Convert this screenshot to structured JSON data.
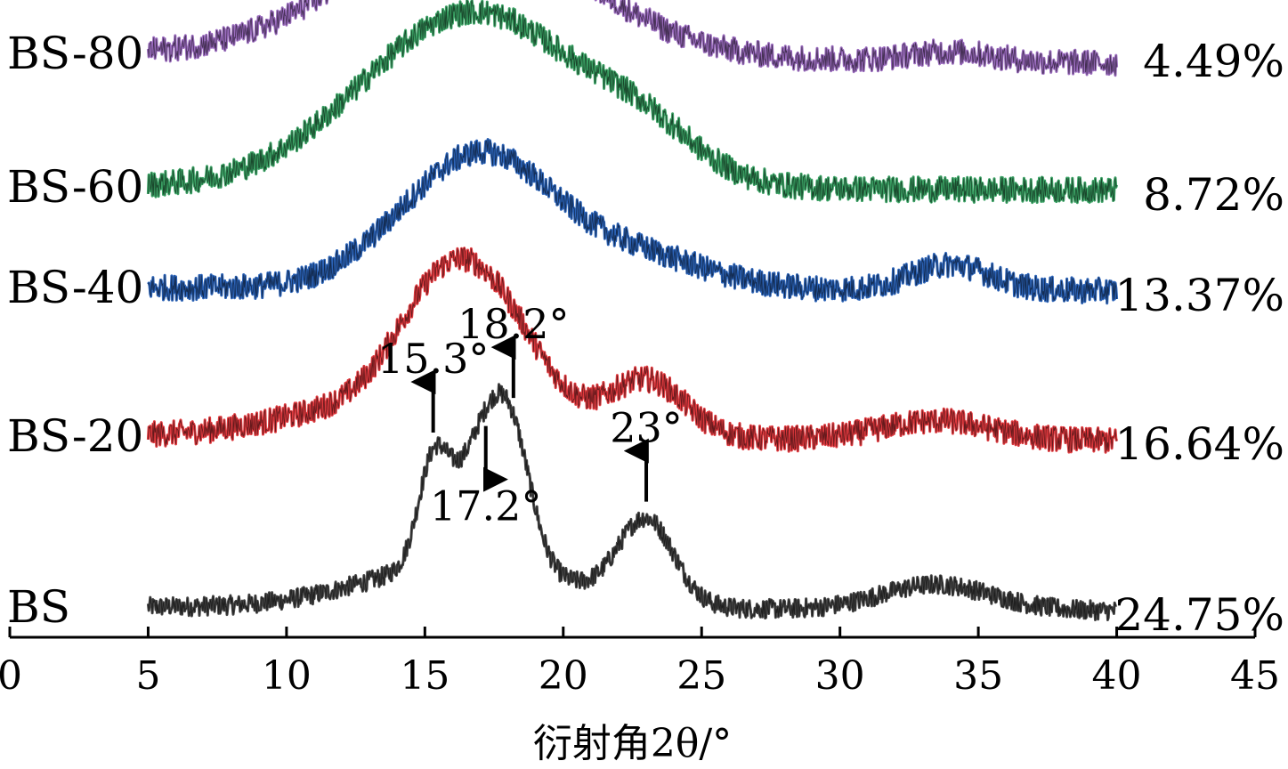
{
  "chart_data": {
    "type": "line",
    "xlabel": "衍射角2θ/°",
    "xlim": [
      0,
      45
    ],
    "x_ticks": [
      "0",
      "5",
      "10",
      "15",
      "20",
      "25",
      "30",
      "35",
      "40",
      "45"
    ],
    "x_range": [
      5,
      40
    ],
    "grid": false,
    "series": [
      {
        "name": "BS",
        "crystallinity": "24.75%",
        "color": "#444444",
        "baseline": 8,
        "noise": 3,
        "peaks": [
          [
            15.3,
            30,
            0.55
          ],
          [
            17.2,
            40,
            1.0
          ],
          [
            18.2,
            24,
            0.7
          ],
          [
            23.0,
            26,
            1.0
          ],
          [
            16.5,
            14,
            3.5
          ],
          [
            33.5,
            8,
            2.0
          ]
        ],
        "slope": -1.2
      },
      {
        "name": "BS-20",
        "crystallinity": "16.64%",
        "color": "#e0393e",
        "baseline": 3,
        "noise": 4,
        "peaks": [
          [
            15.3,
            26,
            1.6
          ],
          [
            17.5,
            34,
            1.8
          ],
          [
            23.0,
            18,
            1.4
          ],
          [
            13.5,
            10,
            3.5
          ],
          [
            33.5,
            6,
            2.0
          ]
        ],
        "slope": -1.5
      },
      {
        "name": "BS-40",
        "crystallinity": "13.37%",
        "color": "#2b63b8",
        "baseline": 3,
        "noise": 4,
        "peaks": [
          [
            15.3,
            20,
            2.4
          ],
          [
            17.7,
            26,
            2.2
          ],
          [
            22.0,
            12,
            2.8
          ],
          [
            34.0,
            8,
            1.4
          ]
        ],
        "slope": -1.0
      },
      {
        "name": "BS-60",
        "crystallinity": "8.72%",
        "color": "#3aa264",
        "baseline": 3,
        "noise": 4,
        "peaks": [
          [
            16.8,
            55,
            4.0
          ],
          [
            23.0,
            10,
            1.8
          ]
        ],
        "slope": -1.0
      },
      {
        "name": "BS-80",
        "crystallinity": "4.49%",
        "color": "#9b6cbf",
        "baseline": 4,
        "noise": 4,
        "peaks": [
          [
            16.5,
            40,
            4.2
          ],
          [
            34.0,
            3,
            1.5
          ]
        ],
        "slope": -3.0
      }
    ],
    "annotations": [
      {
        "text": "15.3°",
        "x": 15.3,
        "direction": "up"
      },
      {
        "text": "18.2°",
        "x": 18.2,
        "direction": "up"
      },
      {
        "text": "23°",
        "x": 23.0,
        "direction": "up"
      },
      {
        "text": "17.2°",
        "x": 17.2,
        "direction": "down"
      }
    ]
  }
}
